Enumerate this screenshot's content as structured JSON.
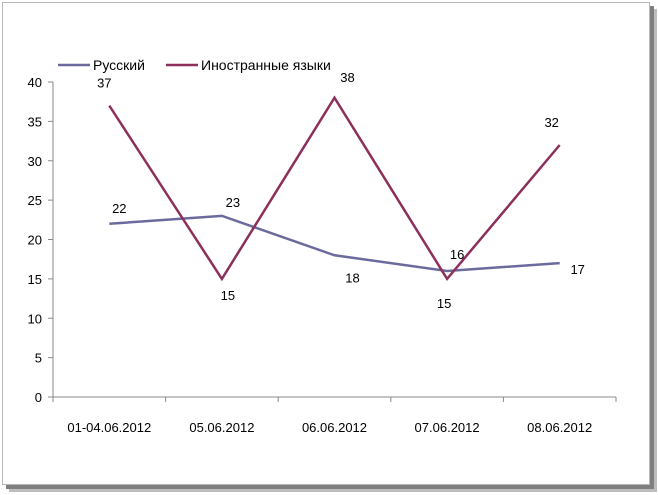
{
  "chart_data": {
    "type": "line",
    "categories": [
      "01-04.06.2012",
      "05.06.2012",
      "06.06.2012",
      "07.06.2012",
      "08.06.2012"
    ],
    "series": [
      {
        "name": "Русский",
        "values": [
          22,
          23,
          18,
          16,
          17
        ],
        "color": "#6a6a9c"
      },
      {
        "name": "Иностранные языки",
        "values": [
          37,
          15,
          38,
          15,
          32
        ],
        "color": "#8c2f5c"
      }
    ],
    "ylim": [
      0,
      40
    ],
    "yticks": [
      0,
      5,
      10,
      15,
      20,
      25,
      30,
      35,
      40
    ],
    "grid": false,
    "legend": "top-left"
  }
}
